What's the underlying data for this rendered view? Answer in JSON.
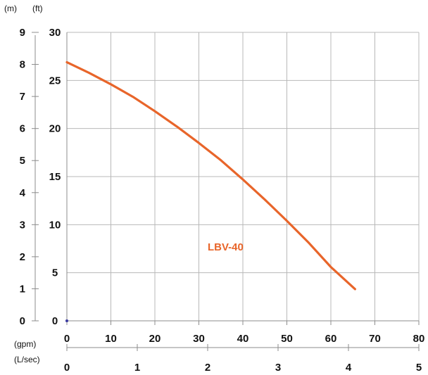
{
  "chart_data": {
    "type": "line",
    "units": {
      "left_outer": "(m)",
      "left_inner": "(ft)",
      "bottom_primary": "(gpm)",
      "bottom_secondary": "(L/sec)"
    },
    "axes": {
      "x_gpm": {
        "range": [
          0,
          80
        ],
        "ticks": [
          "0",
          "10",
          "20",
          "30",
          "40",
          "50",
          "60",
          "70",
          "80"
        ]
      },
      "x_lsec": {
        "range": [
          0,
          5
        ],
        "ticks": [
          "0",
          "1",
          "2",
          "3",
          "4",
          "5"
        ]
      },
      "y_ft": {
        "range": [
          0,
          30
        ],
        "ticks": [
          "0",
          "5",
          "10",
          "15",
          "20",
          "25",
          "30"
        ]
      },
      "y_m": {
        "range": [
          0,
          9
        ],
        "ticks": [
          "0",
          "1",
          "2",
          "3",
          "4",
          "5",
          "6",
          "7",
          "8",
          "9"
        ]
      }
    },
    "grid": true,
    "series": [
      {
        "name": "LBV-40",
        "color": "#e8652a",
        "x": [
          0,
          5,
          10,
          15,
          20,
          25,
          30,
          35,
          40,
          45,
          50,
          55,
          60,
          65.5
        ],
        "y": [
          26.9,
          25.8,
          24.6,
          23.3,
          21.8,
          20.2,
          18.5,
          16.7,
          14.7,
          12.6,
          10.4,
          8.1,
          5.6,
          3.3
        ]
      }
    ]
  }
}
